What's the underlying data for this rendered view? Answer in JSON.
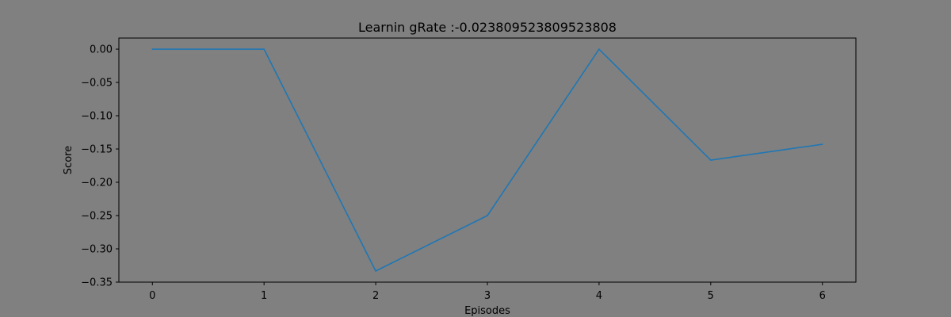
{
  "chart_data": {
    "type": "line",
    "title": "Learnin gRate :-0.023809523809523808",
    "xlabel": "Episodes",
    "ylabel": "Score",
    "x": [
      0,
      1,
      2,
      3,
      4,
      5,
      6
    ],
    "series": [
      {
        "values": [
          0.0,
          0.0,
          -0.3333,
          -0.25,
          0.0,
          -0.1667,
          -0.1429
        ]
      }
    ],
    "xlim": [
      -0.3,
      6.3
    ],
    "ylim": [
      -0.35,
      0.0167
    ],
    "xticks": [
      0,
      1,
      2,
      3,
      4,
      5,
      6
    ],
    "xtick_labels": [
      "0",
      "1",
      "2",
      "3",
      "4",
      "5",
      "6"
    ],
    "yticks": [
      0.0,
      -0.05,
      -0.1,
      -0.15,
      -0.2,
      -0.25,
      -0.3,
      -0.35
    ],
    "ytick_labels": [
      "0.00",
      "−0.05",
      "−0.10",
      "−0.15",
      "−0.20",
      "−0.25",
      "−0.30",
      "−0.35"
    ],
    "grid": false,
    "legend": "none",
    "colors": {
      "background": "#808080",
      "line": "#1f77b4",
      "axes": "#000000"
    }
  }
}
